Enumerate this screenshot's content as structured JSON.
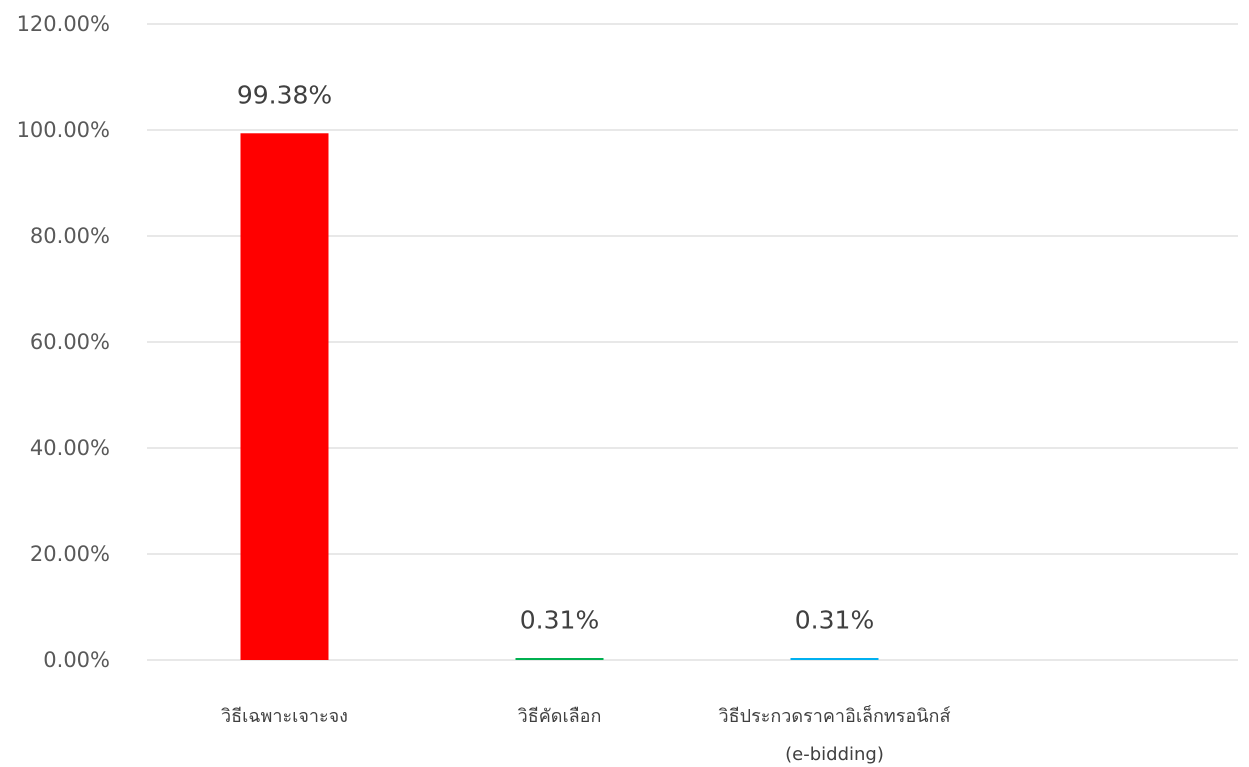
{
  "chart_data": {
    "type": "bar",
    "title": "",
    "xlabel": "",
    "ylabel": "",
    "ylim": [
      0,
      1.2
    ],
    "ytick_step": 0.2,
    "ytick_labels": [
      "0.00%",
      "20.00%",
      "40.00%",
      "60.00%",
      "80.00%",
      "100.00%",
      "120.00%"
    ],
    "grid": true,
    "legend": "none",
    "categories": [
      {
        "lines": [
          "วิธีเฉพาะเจาะจง"
        ]
      },
      {
        "lines": [
          "วิธีคัดเลือก"
        ]
      },
      {
        "lines": [
          "วิธีประกวดราคาอิเล็กทรอนิกส์",
          "(e-bidding)"
        ]
      }
    ],
    "values": [
      0.9938,
      0.0031,
      0.0031
    ],
    "data_labels": [
      "99.38%",
      "0.31%",
      "0.31%"
    ],
    "colors": [
      "#ff0000",
      "#00b050",
      "#00b0f0"
    ]
  }
}
